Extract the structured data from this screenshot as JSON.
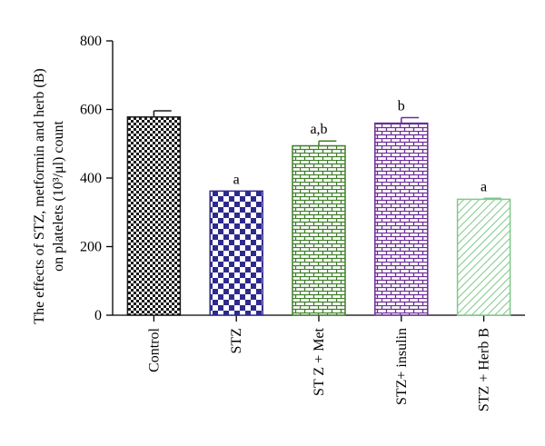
{
  "chart_data": {
    "type": "bar",
    "title": "",
    "xlabel": "",
    "ylabel_lines": [
      "The effects of STZ, metformin and herb (B)",
      "on platelets (10³/μl) count"
    ],
    "ylim": [
      0,
      800
    ],
    "yticks": [
      0,
      200,
      400,
      600,
      800
    ],
    "grid": false,
    "legend": "none",
    "categories": [
      "Control",
      "STZ",
      "ST Z + Met",
      "STZ+ insulin",
      "STZ + Herb B"
    ],
    "values": [
      578,
      362,
      494,
      560,
      338
    ],
    "errors": [
      18,
      0,
      14,
      16,
      3
    ],
    "significance": [
      "",
      "a",
      "a,b",
      "b",
      "a"
    ],
    "colors": [
      "#1a1a1a",
      "#2e2a8c",
      "#3f7f2a",
      "#6b2e96",
      "#7fc98a"
    ],
    "patterns": [
      "checker-fine",
      "checker-large",
      "brick",
      "brick",
      "diagonal"
    ]
  }
}
